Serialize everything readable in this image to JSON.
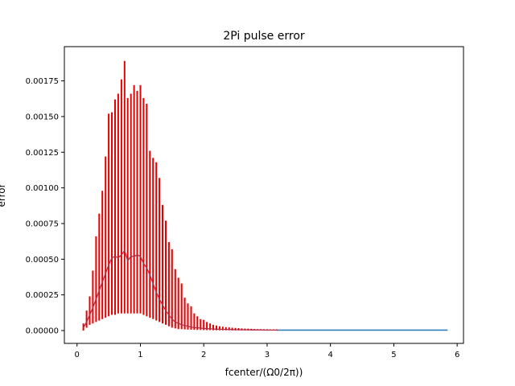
{
  "chart_data": {
    "type": "line",
    "title": "2Pi pulse error",
    "xlabel": "fcenter/(Ω0/2π))",
    "ylabel": "error",
    "xlim": [
      -0.2,
      6.1
    ],
    "ylim": [
      -9e-05,
      0.00199
    ],
    "x_ticks": [
      0,
      1,
      2,
      3,
      4,
      5,
      6
    ],
    "x_tick_labels": [
      "0",
      "1",
      "2",
      "3",
      "4",
      "5",
      "6"
    ],
    "y_ticks": [
      0.0,
      0.00025,
      0.0005,
      0.00075,
      0.001,
      0.00125,
      0.0015,
      0.00175
    ],
    "y_tick_labels": [
      "0.00000",
      "0.00025",
      "0.00050",
      "0.00075",
      "0.00100",
      "0.00125",
      "0.00150",
      "0.00175"
    ],
    "grid": false,
    "colors": {
      "errorbar": "#e60000",
      "mean_line": "#b02d48",
      "tail_line": "#1f77b4"
    },
    "series": [
      {
        "kind": "errorbar",
        "x": [
          0.1,
          0.15,
          0.2,
          0.25,
          0.3,
          0.35,
          0.4,
          0.45,
          0.5,
          0.55,
          0.6,
          0.65,
          0.7,
          0.75,
          0.8,
          0.85,
          0.9,
          0.95,
          1.0,
          1.05,
          1.1,
          1.15,
          1.2,
          1.25,
          1.3,
          1.35,
          1.4,
          1.45,
          1.5,
          1.55,
          1.6,
          1.65,
          1.7,
          1.75,
          1.8,
          1.85,
          1.9,
          1.95,
          2.0,
          2.05,
          2.1,
          2.15,
          2.2,
          2.25,
          2.3,
          2.35,
          2.4,
          2.45,
          2.5,
          2.55,
          2.6,
          2.65,
          2.7,
          2.75,
          2.8,
          2.85,
          2.9,
          2.95,
          3.0,
          3.05,
          3.1,
          3.15
        ],
        "y": [
          2e-05,
          6e-05,
          0.00011,
          0.00016,
          0.00022,
          0.00028,
          0.00034,
          0.0004,
          0.00046,
          0.00051,
          0.00052,
          0.00051,
          0.00053,
          0.00056,
          0.00049,
          0.00052,
          0.00052,
          0.00053,
          0.00052,
          0.00047,
          0.00044,
          0.00039,
          0.00033,
          0.00027,
          0.00022,
          0.00018,
          0.00014,
          0.00011,
          8e-05,
          6e-05,
          5e-05,
          4e-05,
          3.5e-05,
          3e-05,
          2.5e-05,
          2e-05,
          2e-05,
          1.7e-05,
          1.5e-05,
          1.3e-05,
          1.2e-05,
          1.1e-05,
          1e-05,
          9e-06,
          8e-06,
          8e-06,
          7e-06,
          7e-06,
          6e-06,
          6e-06,
          5e-06,
          5e-06,
          5e-06,
          4e-06,
          4e-06,
          4e-06,
          4e-06,
          3e-06,
          3e-06,
          3e-06,
          3e-06,
          3e-06
        ],
        "upper": [
          5e-05,
          0.00014,
          0.00024,
          0.00042,
          0.00066,
          0.00082,
          0.00098,
          0.00122,
          0.00152,
          0.00153,
          0.00162,
          0.00166,
          0.00176,
          0.00189,
          0.00163,
          0.00166,
          0.00172,
          0.00168,
          0.00172,
          0.00163,
          0.00159,
          0.00126,
          0.00121,
          0.00118,
          0.00107,
          0.00088,
          0.00077,
          0.00062,
          0.00057,
          0.00043,
          0.00037,
          0.00033,
          0.00023,
          0.00019,
          0.00017,
          0.00012,
          0.0001,
          8e-05,
          7.5e-05,
          6e-05,
          5e-05,
          4e-05,
          3.5e-05,
          3e-05,
          2.7e-05,
          2.4e-05,
          2.2e-05,
          2e-05,
          1.8e-05,
          1.7e-05,
          1.5e-05,
          1.4e-05,
          1.3e-05,
          1.2e-05,
          1.1e-05,
          1e-05,
          1e-05,
          9e-06,
          9e-06,
          8e-06,
          8e-06,
          8e-06
        ],
        "lower": [
          0.0,
          2e-05,
          4e-05,
          5e-05,
          6e-05,
          7e-05,
          8e-05,
          9e-05,
          0.0001,
          0.00011,
          0.00011,
          0.00012,
          0.00012,
          0.00012,
          0.00012,
          0.00012,
          0.00012,
          0.00012,
          0.00012,
          0.00011,
          0.0001,
          9e-05,
          8e-05,
          7e-05,
          6e-05,
          5e-05,
          4e-05,
          3e-05,
          2e-05,
          1.5e-05,
          1e-05,
          1e-05,
          8e-06,
          7e-06,
          6e-06,
          5e-06,
          4e-06,
          4e-06,
          3e-06,
          3e-06,
          3e-06,
          2e-06,
          2e-06,
          2e-06,
          2e-06,
          2e-06,
          2e-06,
          1e-06,
          1e-06,
          1e-06,
          1e-06,
          1e-06,
          1e-06,
          1e-06,
          1e-06,
          1e-06,
          1e-06,
          1e-06,
          1e-06,
          1e-06,
          1e-06,
          1e-06
        ]
      },
      {
        "kind": "line",
        "x": [
          3.15,
          5.85
        ],
        "y": [
          3e-06,
          3e-06
        ]
      }
    ]
  }
}
